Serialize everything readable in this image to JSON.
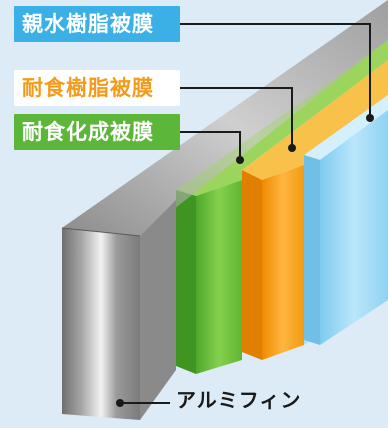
{
  "labels": {
    "hydrophilic": "親水樹脂被膜",
    "corrosion_resin": "耐食樹脂被膜",
    "chemical_conversion": "耐食化成被膜",
    "aluminum_fin": "アルミフィン"
  },
  "colors": {
    "background": "#dcebf5",
    "hydrophilic": "#8fd3f2",
    "corrosion_resin": "#f5a623",
    "chemical_conversion": "#7cc242",
    "aluminum": "#b9b9b9"
  }
}
